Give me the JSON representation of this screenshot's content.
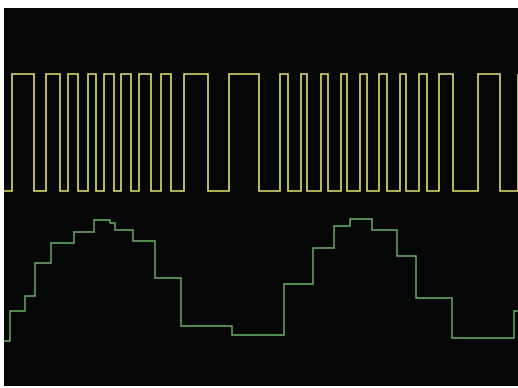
{
  "channels": [
    {
      "name": "",
      "color": "#e6e26a",
      "levels": "digital",
      "pulse_widths": [
        1,
        1,
        1,
        1,
        1,
        1,
        1,
        1,
        2,
        1,
        2,
        2,
        2,
        2,
        1,
        1,
        1,
        1,
        1,
        1,
        1,
        1,
        1,
        1,
        1,
        1,
        1,
        1,
        1,
        2,
        2,
        2
      ]
    },
    {
      "name": "",
      "color": "#6fb36a",
      "levels": "stepped"
    }
  ],
  "colors": {
    "screen": "#050606",
    "frame": "#ffffff"
  }
}
